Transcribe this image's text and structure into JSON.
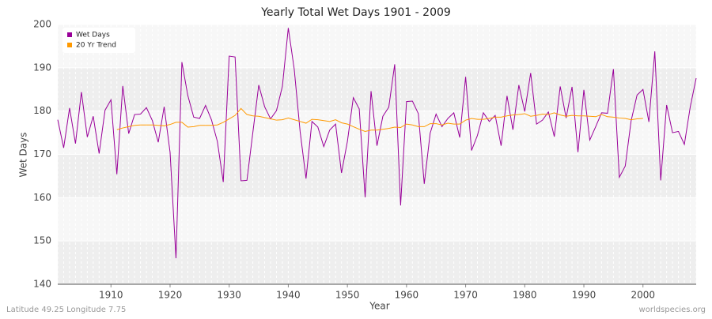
{
  "chart_data": {
    "type": "line",
    "title": "Yearly Total Wet Days 1901 - 2009",
    "x_label": "Year",
    "y_label": "Wet Days",
    "footer_left": "Latitude 49.25 Longitude 7.75",
    "footer_right": "worldspecies.org",
    "x": [
      1901,
      1902,
      1903,
      1904,
      1905,
      1906,
      1907,
      1908,
      1909,
      1910,
      1911,
      1912,
      1913,
      1914,
      1915,
      1916,
      1917,
      1918,
      1919,
      1920,
      1921,
      1922,
      1923,
      1924,
      1925,
      1926,
      1927,
      1928,
      1929,
      1930,
      1931,
      1932,
      1933,
      1934,
      1935,
      1936,
      1937,
      1938,
      1939,
      1940,
      1941,
      1942,
      1943,
      1944,
      1945,
      1946,
      1947,
      1948,
      1949,
      1950,
      1951,
      1952,
      1953,
      1954,
      1955,
      1956,
      1957,
      1958,
      1959,
      1960,
      1961,
      1962,
      1963,
      1964,
      1965,
      1966,
      1967,
      1968,
      1969,
      1970,
      1971,
      1972,
      1973,
      1974,
      1975,
      1976,
      1977,
      1978,
      1979,
      1980,
      1981,
      1982,
      1983,
      1984,
      1985,
      1986,
      1987,
      1988,
      1989,
      1990,
      1991,
      1992,
      1993,
      1994,
      1995,
      1996,
      1997,
      1998,
      1999,
      2000,
      2001,
      2002,
      2003,
      2004,
      2005,
      2006,
      2007,
      2008,
      2009
    ],
    "series": [
      {
        "name": "Wet Days",
        "color": "#990099",
        "values": [
          178,
          171.5,
          180.7,
          172.5,
          184.4,
          174,
          178.8,
          170.2,
          180.2,
          182.6,
          165.4,
          185.8,
          174.8,
          179.2,
          179.3,
          180.8,
          177.8,
          172.8,
          181,
          170.5,
          146,
          191.3,
          183.6,
          178.6,
          178.3,
          181.3,
          178,
          173,
          163.6,
          192.7,
          192.5,
          163.9,
          164,
          175,
          186,
          181,
          178.2,
          180.1,
          185.7,
          199.2,
          189.7,
          175.3,
          164.4,
          177.6,
          176.3,
          171.8,
          175.6,
          177,
          165.7,
          173,
          183.1,
          180.5,
          160.1,
          184.6,
          172,
          178.8,
          180.9,
          190.8,
          158.2,
          182.2,
          182.3,
          179.4,
          163.2,
          174.9,
          179.3,
          176.4,
          178.3,
          179.6,
          173.9,
          187.9,
          170.9,
          174.4,
          179.6,
          177.6,
          179,
          172,
          183.5,
          175.7,
          186,
          179.9,
          188.8,
          177,
          177.9,
          179.8,
          174.1,
          185.7,
          178.4,
          185.6,
          170.5,
          184.9,
          173.3,
          176.4,
          179.6,
          179.5,
          189.7,
          164.7,
          167.3,
          177.8,
          183.7,
          185,
          177.5,
          193.8,
          164,
          181.4,
          175,
          175.3,
          172.3,
          181,
          187.6
        ]
      },
      {
        "name": "20 Yr Trend",
        "color": "#ff9900",
        "values": [
          null,
          null,
          null,
          null,
          null,
          null,
          null,
          null,
          null,
          null,
          175.7,
          176.1,
          176.4,
          176.7,
          176.8,
          176.8,
          176.8,
          176.7,
          176.6,
          176.9,
          177.4,
          177.4,
          176.3,
          176.4,
          176.7,
          176.7,
          176.7,
          176.8,
          177.4,
          178.2,
          179,
          180.6,
          179.2,
          178.9,
          178.8,
          178.5,
          178.2,
          177.9,
          178,
          178.4,
          178,
          177.6,
          177.2,
          178.1,
          178,
          177.8,
          177.6,
          178,
          177.3,
          177,
          176.4,
          175.8,
          175.3,
          175.6,
          175.6,
          175.8,
          176,
          176.3,
          176.2,
          177,
          176.8,
          176.4,
          176.4,
          177.1,
          177.1,
          176.8,
          177.2,
          177,
          177,
          177.9,
          178.3,
          178.1,
          178.1,
          178.3,
          178.6,
          178.6,
          178.9,
          179.1,
          179.2,
          179.4,
          178.8,
          179,
          179.3,
          179.2,
          179.6,
          179.1,
          178.8,
          179,
          178.9,
          178.9,
          178.8,
          178.7,
          179.2,
          178.7,
          178.6,
          178.4,
          178.3,
          178,
          178.2,
          178.3,
          null,
          null,
          null,
          null,
          null,
          null,
          null,
          null,
          null
        ]
      }
    ],
    "xlim": [
      1901,
      2009
    ],
    "xticks": [
      1910,
      1920,
      1930,
      1940,
      1950,
      1960,
      1970,
      1980,
      1990,
      2000
    ],
    "ylim": [
      140,
      200
    ],
    "yticks": [
      140,
      150,
      160,
      170,
      180,
      190,
      200
    ],
    "grid": true,
    "legend": "top-left"
  }
}
